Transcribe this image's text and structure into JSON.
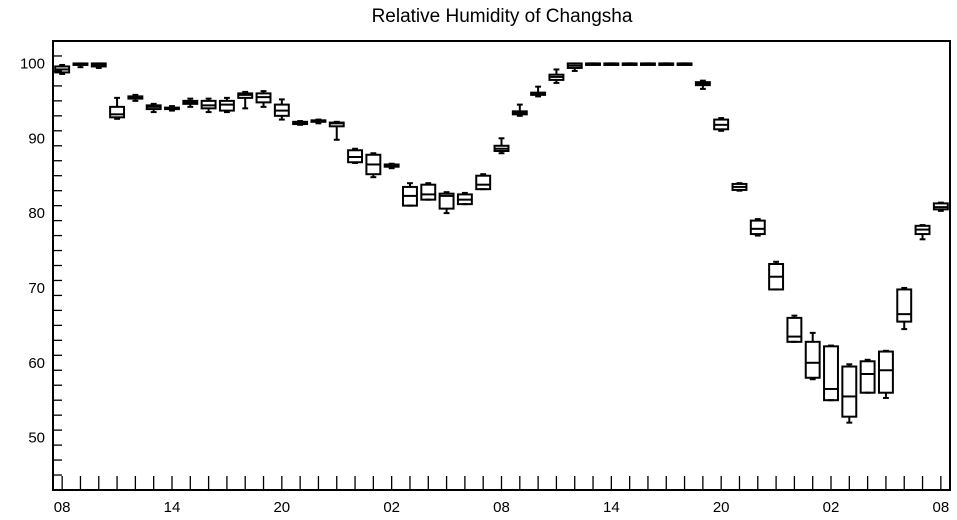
{
  "chart_data": {
    "type": "box",
    "title": "Relative Humidity of Changsha",
    "xlabel": "",
    "ylabel": "",
    "ylim": [
      43,
      103
    ],
    "y_ticks": [
      50,
      60,
      70,
      80,
      90,
      100
    ],
    "x_range": [
      -0.5,
      48.5
    ],
    "x_ticks": [
      {
        "label": "08",
        "x": 0
      },
      {
        "label": "14",
        "x": 6
      },
      {
        "label": "20",
        "x": 12
      },
      {
        "label": "02",
        "x": 18
      },
      {
        "label": "08",
        "x": 24
      },
      {
        "label": "14",
        "x": 30
      },
      {
        "label": "20",
        "x": 36
      },
      {
        "label": "02",
        "x": 42
      },
      {
        "label": "08",
        "x": 48
      }
    ],
    "boxes": [
      {
        "x": 0,
        "min": 98.6,
        "q1": 98.8,
        "median": 99.2,
        "q3": 99.6,
        "max": 99.8
      },
      {
        "x": 1,
        "min": 99.5,
        "q1": 99.8,
        "median": 99.9,
        "q3": 100.0,
        "max": 100.0
      },
      {
        "x": 2,
        "min": 99.4,
        "q1": 99.6,
        "median": 99.8,
        "q3": 100.0,
        "max": 100.0
      },
      {
        "x": 3,
        "min": 92.6,
        "q1": 92.8,
        "median": 93.2,
        "q3": 94.2,
        "max": 95.4
      },
      {
        "x": 4,
        "min": 95.0,
        "q1": 95.3,
        "median": 95.4,
        "q3": 95.6,
        "max": 95.8
      },
      {
        "x": 5,
        "min": 93.5,
        "q1": 93.9,
        "median": 94.2,
        "q3": 94.4,
        "max": 94.6
      },
      {
        "x": 6,
        "min": 93.7,
        "q1": 93.9,
        "median": 94.0,
        "q3": 94.1,
        "max": 94.3
      },
      {
        "x": 7,
        "min": 94.2,
        "q1": 94.6,
        "median": 94.8,
        "q3": 95.0,
        "max": 95.3
      },
      {
        "x": 8,
        "min": 93.5,
        "q1": 94.0,
        "median": 94.4,
        "q3": 95.0,
        "max": 95.3
      },
      {
        "x": 9,
        "min": 93.5,
        "q1": 93.7,
        "median": 94.5,
        "q3": 95.0,
        "max": 95.4
      },
      {
        "x": 10,
        "min": 94.0,
        "q1": 95.4,
        "median": 95.8,
        "q3": 96.0,
        "max": 96.2
      },
      {
        "x": 11,
        "min": 94.2,
        "q1": 94.8,
        "median": 95.5,
        "q3": 96.0,
        "max": 96.3
      },
      {
        "x": 12,
        "min": 92.5,
        "q1": 93.0,
        "median": 93.7,
        "q3": 94.5,
        "max": 95.2
      },
      {
        "x": 13,
        "min": 91.8,
        "q1": 91.9,
        "median": 92.0,
        "q3": 92.2,
        "max": 92.3
      },
      {
        "x": 14,
        "min": 92.0,
        "q1": 92.2,
        "median": 92.3,
        "q3": 92.4,
        "max": 92.5
      },
      {
        "x": 15,
        "min": 89.8,
        "q1": 91.6,
        "median": 92.0,
        "q3": 92.1,
        "max": 92.2
      },
      {
        "x": 16,
        "min": 86.7,
        "q1": 86.8,
        "median": 87.5,
        "q3": 88.4,
        "max": 88.6
      },
      {
        "x": 17,
        "min": 84.8,
        "q1": 85.2,
        "median": 86.5,
        "q3": 87.8,
        "max": 88.0
      },
      {
        "x": 18,
        "min": 86.0,
        "q1": 86.2,
        "median": 86.3,
        "q3": 86.5,
        "max": 86.6
      },
      {
        "x": 19,
        "min": 81.0,
        "q1": 81.0,
        "median": 82.3,
        "q3": 83.5,
        "max": 84.0
      },
      {
        "x": 20,
        "min": 81.8,
        "q1": 81.8,
        "median": 82.5,
        "q3": 83.8,
        "max": 84.0
      },
      {
        "x": 21,
        "min": 80.0,
        "q1": 80.6,
        "median": 82.3,
        "q3": 82.6,
        "max": 82.8
      },
      {
        "x": 22,
        "min": 81.2,
        "q1": 81.2,
        "median": 81.8,
        "q3": 82.5,
        "max": 82.7
      },
      {
        "x": 23,
        "min": 83.2,
        "q1": 83.2,
        "median": 83.8,
        "q3": 85.0,
        "max": 85.2
      },
      {
        "x": 24,
        "min": 88.0,
        "q1": 88.3,
        "median": 88.6,
        "q3": 89.0,
        "max": 90.0
      },
      {
        "x": 25,
        "min": 93.0,
        "q1": 93.2,
        "median": 93.4,
        "q3": 93.6,
        "max": 94.5
      },
      {
        "x": 26,
        "min": 95.6,
        "q1": 95.8,
        "median": 95.9,
        "q3": 96.1,
        "max": 96.9
      },
      {
        "x": 27,
        "min": 97.4,
        "q1": 97.8,
        "median": 98.2,
        "q3": 98.5,
        "max": 99.2
      },
      {
        "x": 28,
        "min": 99.0,
        "q1": 99.4,
        "median": 99.7,
        "q3": 100.0,
        "max": 100.0
      },
      {
        "x": 29,
        "min": 100.0,
        "q1": 100.0,
        "median": 100.0,
        "q3": 100.0,
        "max": 100.0
      },
      {
        "x": 30,
        "min": 100.0,
        "q1": 100.0,
        "median": 100.0,
        "q3": 100.0,
        "max": 100.0
      },
      {
        "x": 31,
        "min": 100.0,
        "q1": 100.0,
        "median": 100.0,
        "q3": 100.0,
        "max": 100.0
      },
      {
        "x": 32,
        "min": 100.0,
        "q1": 100.0,
        "median": 100.0,
        "q3": 100.0,
        "max": 100.0
      },
      {
        "x": 33,
        "min": 100.0,
        "q1": 100.0,
        "median": 100.0,
        "q3": 100.0,
        "max": 100.0
      },
      {
        "x": 34,
        "min": 100.0,
        "q1": 100.0,
        "median": 100.0,
        "q3": 100.0,
        "max": 100.0
      },
      {
        "x": 35,
        "min": 96.6,
        "q1": 97.1,
        "median": 97.3,
        "q3": 97.5,
        "max": 97.7
      },
      {
        "x": 36,
        "min": 91.0,
        "q1": 91.2,
        "median": 91.8,
        "q3": 92.5,
        "max": 92.7
      },
      {
        "x": 37,
        "min": 83.0,
        "q1": 83.1,
        "median": 83.5,
        "q3": 83.9,
        "max": 84.0
      },
      {
        "x": 38,
        "min": 77.0,
        "q1": 77.2,
        "median": 77.9,
        "q3": 79.0,
        "max": 79.2
      },
      {
        "x": 39,
        "min": 69.8,
        "q1": 69.8,
        "median": 71.5,
        "q3": 73.2,
        "max": 73.5
      },
      {
        "x": 40,
        "min": 62.8,
        "q1": 62.8,
        "median": 63.5,
        "q3": 66.0,
        "max": 66.3
      },
      {
        "x": 41,
        "min": 57.8,
        "q1": 58.0,
        "median": 60.0,
        "q3": 62.8,
        "max": 64.0
      },
      {
        "x": 42,
        "min": 55.0,
        "q1": 55.0,
        "median": 56.5,
        "q3": 62.2,
        "max": 62.3
      },
      {
        "x": 43,
        "min": 52.0,
        "q1": 52.8,
        "median": 55.5,
        "q3": 59.5,
        "max": 59.8
      },
      {
        "x": 44,
        "min": 56.0,
        "q1": 56.0,
        "median": 58.5,
        "q3": 60.2,
        "max": 60.4
      },
      {
        "x": 45,
        "min": 55.3,
        "q1": 56.0,
        "median": 59.0,
        "q3": 61.5,
        "max": 61.6
      },
      {
        "x": 46,
        "min": 64.5,
        "q1": 65.5,
        "median": 66.5,
        "q3": 69.8,
        "max": 70.0
      },
      {
        "x": 47,
        "min": 76.5,
        "q1": 77.2,
        "median": 77.8,
        "q3": 78.3,
        "max": 78.4
      },
      {
        "x": 48,
        "min": 80.3,
        "q1": 80.5,
        "median": 80.8,
        "q3": 81.3,
        "max": 81.4
      }
    ]
  }
}
